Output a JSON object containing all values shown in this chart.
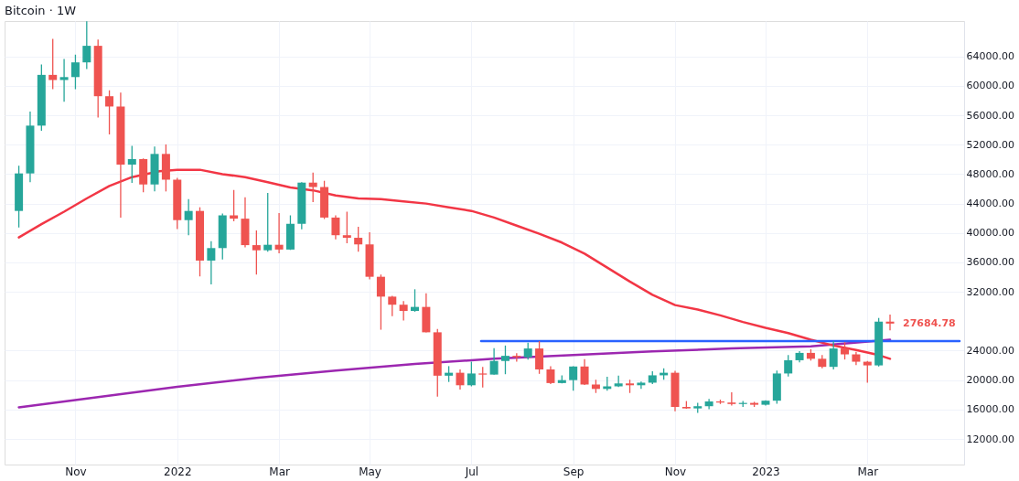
{
  "chart_data": {
    "type": "candlestick",
    "title": "Bitcoin · 1W",
    "x": [
      "2021-09-27",
      "2021-10-04",
      "2021-10-11",
      "2021-10-18",
      "2021-10-25",
      "2021-11-01",
      "2021-11-08",
      "2021-11-15",
      "2021-11-22",
      "2021-11-29",
      "2021-12-06",
      "2021-12-13",
      "2021-12-20",
      "2021-12-27",
      "2022-01-03",
      "2022-01-10",
      "2022-01-17",
      "2022-01-24",
      "2022-01-31",
      "2022-02-07",
      "2022-02-14",
      "2022-02-21",
      "2022-02-28",
      "2022-03-07",
      "2022-03-14",
      "2022-03-21",
      "2022-03-28",
      "2022-04-04",
      "2022-04-11",
      "2022-04-18",
      "2022-04-25",
      "2022-05-02",
      "2022-05-09",
      "2022-05-16",
      "2022-05-23",
      "2022-05-30",
      "2022-06-06",
      "2022-06-13",
      "2022-06-20",
      "2022-06-27",
      "2022-07-04",
      "2022-07-11",
      "2022-07-18",
      "2022-07-25",
      "2022-08-01",
      "2022-08-08",
      "2022-08-15",
      "2022-08-22",
      "2022-08-29",
      "2022-09-05",
      "2022-09-12",
      "2022-09-19",
      "2022-09-26",
      "2022-10-03",
      "2022-10-10",
      "2022-10-17",
      "2022-10-24",
      "2022-10-31",
      "2022-11-07",
      "2022-11-14",
      "2022-11-21",
      "2022-11-28",
      "2022-12-05",
      "2022-12-12",
      "2022-12-19",
      "2022-12-26",
      "2023-01-02",
      "2023-01-09",
      "2023-01-16",
      "2023-01-23",
      "2023-01-30",
      "2023-02-06",
      "2023-02-13",
      "2023-02-20",
      "2023-02-27",
      "2023-03-06",
      "2023-03-13",
      "2023-03-20"
    ],
    "ohlc": [
      [
        43000,
        49150,
        40750,
        48100
      ],
      [
        48100,
        56500,
        46900,
        54600
      ],
      [
        54600,
        62900,
        53900,
        61500
      ],
      [
        61500,
        66400,
        59550,
        60800
      ],
      [
        60800,
        63650,
        57850,
        61200
      ],
      [
        61200,
        64250,
        59550,
        63200
      ],
      [
        63200,
        68800,
        62300,
        65450
      ],
      [
        65450,
        66300,
        55700,
        58600
      ],
      [
        58600,
        59400,
        53400,
        57200
      ],
      [
        57200,
        59100,
        42100,
        49300
      ],
      [
        49300,
        51850,
        46800,
        50050
      ],
      [
        50050,
        50150,
        45550,
        46600
      ],
      [
        46600,
        51750,
        45650,
        50750
      ],
      [
        50750,
        52050,
        45650,
        47250
      ],
      [
        47250,
        47500,
        40550,
        41750
      ],
      [
        41750,
        44600,
        39700,
        43000
      ],
      [
        43000,
        43500,
        34100,
        36250
      ],
      [
        36250,
        38900,
        33000,
        37950
      ],
      [
        37950,
        42650,
        36400,
        42400
      ],
      [
        42400,
        45850,
        41600,
        41950
      ],
      [
        41950,
        44850,
        38050,
        38350
      ],
      [
        38350,
        40350,
        34350,
        37650
      ],
      [
        37650,
        45450,
        37450,
        38400
      ],
      [
        38400,
        42700,
        37250,
        37750
      ],
      [
        37750,
        42400,
        37700,
        41250
      ],
      [
        41250,
        46900,
        40500,
        46850
      ],
      [
        46850,
        48200,
        44200,
        46250
      ],
      [
        46250,
        47100,
        41900,
        42100
      ],
      [
        42100,
        42400,
        39150,
        39700
      ],
      [
        39700,
        42900,
        38600,
        39350
      ],
      [
        39350,
        40850,
        37450,
        38450
      ],
      [
        38450,
        40100,
        33700,
        34050
      ],
      [
        34050,
        34350,
        26850,
        31350
      ],
      [
        31350,
        31450,
        28700,
        30250
      ],
      [
        30250,
        30750,
        28100,
        29400
      ],
      [
        29400,
        32350,
        29300,
        29950
      ],
      [
        29950,
        31800,
        26500,
        26500
      ],
      [
        26500,
        26950,
        17750,
        20600
      ],
      [
        20600,
        21900,
        19750,
        21000
      ],
      [
        21000,
        21450,
        18700,
        19300
      ],
      [
        19300,
        22500,
        19150,
        20900
      ],
      [
        20900,
        21800,
        19000,
        20750
      ],
      [
        20750,
        24350,
        20750,
        22600
      ],
      [
        22600,
        24700,
        20800,
        23300
      ],
      [
        23300,
        23650,
        22500,
        23100
      ],
      [
        23100,
        25100,
        22800,
        24300
      ],
      [
        24300,
        25300,
        20850,
        21450
      ],
      [
        21450,
        21900,
        19450,
        19600
      ],
      [
        19600,
        20650,
        19550,
        20000
      ],
      [
        20000,
        21900,
        18550,
        21850
      ],
      [
        21850,
        22850,
        19350,
        19400
      ],
      [
        19400,
        20050,
        18250,
        18800
      ],
      [
        18800,
        20450,
        18550,
        19150
      ],
      [
        19150,
        20600,
        19050,
        19550
      ],
      [
        19550,
        20050,
        18250,
        19300
      ],
      [
        19300,
        19800,
        18800,
        19650
      ],
      [
        19650,
        21200,
        19450,
        20650
      ],
      [
        20650,
        21600,
        20050,
        21000
      ],
      [
        21000,
        21250,
        15750,
        16350
      ],
      [
        16350,
        17150,
        16100,
        16150
      ],
      [
        16150,
        16900,
        15550,
        16450
      ],
      [
        16450,
        17450,
        16050,
        17100
      ],
      [
        17100,
        17350,
        16750,
        16950
      ],
      [
        16950,
        18350,
        16550,
        16750
      ],
      [
        16750,
        17150,
        16350,
        16900
      ],
      [
        16900,
        17050,
        16350,
        16650
      ],
      [
        16650,
        17250,
        16550,
        17200
      ],
      [
        17200,
        21300,
        16800,
        20900
      ],
      [
        20900,
        23400,
        20500,
        22700
      ],
      [
        22700,
        23950,
        22400,
        23700
      ],
      [
        23700,
        24200,
        22650,
        22900
      ],
      [
        22900,
        23400,
        21600,
        21800
      ],
      [
        21800,
        25300,
        21450,
        24300
      ],
      [
        24300,
        25150,
        22800,
        23500
      ],
      [
        23500,
        23850,
        22050,
        22500
      ],
      [
        22500,
        22600,
        19650,
        22000
      ],
      [
        22000,
        28450,
        21850,
        27950
      ],
      [
        27950,
        28900,
        26750,
        27685
      ]
    ],
    "colors": [
      "#26a69a",
      "#26a69a",
      "#26a69a",
      "#ef5350",
      "#26a69a",
      "#26a69a",
      "#26a69a",
      "#ef5350",
      "#ef5350",
      "#ef5350",
      "#26a69a",
      "#ef5350",
      "#26a69a",
      "#ef5350",
      "#ef5350",
      "#26a69a",
      "#ef5350",
      "#26a69a",
      "#26a69a",
      "#ef5350",
      "#ef5350",
      "#ef5350",
      "#26a69a",
      "#ef5350",
      "#26a69a",
      "#26a69a",
      "#ef5350",
      "#ef5350",
      "#ef5350",
      "#ef5350",
      "#ef5350",
      "#ef5350",
      "#ef5350",
      "#ef5350",
      "#ef5350",
      "#26a69a",
      "#ef5350",
      "#ef5350",
      "#26a69a",
      "#ef5350",
      "#26a69a",
      "#ef5350",
      "#26a69a",
      "#26a69a",
      "#ef5350",
      "#26a69a",
      "#ef5350",
      "#ef5350",
      "#26a69a",
      "#26a69a",
      "#ef5350",
      "#ef5350",
      "#26a69a",
      "#26a69a",
      "#ef5350",
      "#26a69a",
      "#26a69a",
      "#26a69a",
      "#ef5350",
      "#ef5350",
      "#26a69a",
      "#26a69a",
      "#ef5350",
      "#ef5350",
      "#26a69a",
      "#ef5350",
      "#26a69a",
      "#26a69a",
      "#26a69a",
      "#26a69a",
      "#ef5350",
      "#ef5350",
      "#26a69a",
      "#ef5350",
      "#ef5350",
      "#ef5350",
      "#26a69a",
      "#ef5350"
    ],
    "series": [
      {
        "type": "line",
        "color": "#9c27b0",
        "x": [
          "2021-09-27",
          "2021-11-15",
          "2022-01-03",
          "2022-02-21",
          "2022-04-11",
          "2022-05-30",
          "2022-07-18",
          "2022-09-05",
          "2022-10-24",
          "2022-12-12",
          "2023-01-30",
          "2023-03-20"
        ],
        "values": [
          16300,
          17700,
          19100,
          20300,
          21300,
          22200,
          22900,
          23400,
          23900,
          24300,
          24600,
          25500
        ]
      },
      {
        "type": "line",
        "color": "#f23645",
        "x": [
          "2021-09-27",
          "2021-10-11",
          "2021-10-25",
          "2021-11-08",
          "2021-11-22",
          "2021-12-06",
          "2021-12-23",
          "2022-01-03",
          "2022-01-17",
          "2022-01-31",
          "2022-02-14",
          "2022-02-28",
          "2022-03-14",
          "2022-03-28",
          "2022-04-11",
          "2022-04-25",
          "2022-05-09",
          "2022-05-23",
          "2022-06-06",
          "2022-06-20",
          "2022-07-04",
          "2022-07-18",
          "2022-08-01",
          "2022-08-15",
          "2022-08-29",
          "2022-09-12",
          "2022-09-26",
          "2022-10-10",
          "2022-10-24",
          "2022-11-07",
          "2022-11-21",
          "2022-12-05",
          "2022-12-19",
          "2023-01-02",
          "2023-01-16",
          "2023-01-30",
          "2023-02-13",
          "2023-02-27",
          "2023-03-13",
          "2023-03-20"
        ],
        "values": [
          39400,
          41200,
          42900,
          44700,
          46400,
          47600,
          48400,
          48600,
          48600,
          48000,
          47600,
          46900,
          46200,
          45800,
          45100,
          44700,
          44600,
          44300,
          44000,
          43500,
          43000,
          42100,
          41000,
          39900,
          38700,
          37200,
          35300,
          33400,
          31600,
          30200,
          29600,
          28800,
          27900,
          27100,
          26400,
          25500,
          24700,
          24100,
          23400,
          22900
        ]
      },
      {
        "type": "line",
        "color": "#2962ff",
        "x": [
          "2022-07-10",
          "2023-05-02"
        ],
        "values": [
          25300,
          25300
        ]
      }
    ],
    "xlim": [
      "2021-09-21",
      "2023-05-02"
    ],
    "xticks": [
      {
        "value": "2021-11-01",
        "label": "Nov"
      },
      {
        "value": "2022-01-03",
        "label": "2022"
      },
      {
        "value": "2022-03-07",
        "label": "Mar"
      },
      {
        "value": "2022-05-02",
        "label": "May"
      },
      {
        "value": "2022-07-04",
        "label": "Jul"
      },
      {
        "value": "2022-09-05",
        "label": "Sep"
      },
      {
        "value": "2022-11-07",
        "label": "Nov"
      },
      {
        "value": "2023-01-02",
        "label": "2023"
      },
      {
        "value": "2023-03-06",
        "label": "Mar"
      }
    ],
    "ylim": [
      8520,
      68820
    ],
    "yticks": [
      {
        "value": 12000,
        "label": "12000.00"
      },
      {
        "value": 16000,
        "label": "16000.00"
      },
      {
        "value": 20000,
        "label": "20000.00"
      },
      {
        "value": 24000,
        "label": "24000.00"
      },
      {
        "value": 32000,
        "label": "32000.00"
      },
      {
        "value": 36000,
        "label": "36000.00"
      },
      {
        "value": 40000,
        "label": "40000.00"
      },
      {
        "value": 44000,
        "label": "44000.00"
      },
      {
        "value": 48000,
        "label": "48000.00"
      },
      {
        "value": 52000,
        "label": "52000.00"
      },
      {
        "value": 56000,
        "label": "56000.00"
      },
      {
        "value": 60000,
        "label": "60000.00"
      },
      {
        "value": 64000,
        "label": "64000.00"
      }
    ],
    "grid": true,
    "annotations": [
      {
        "text": "27684.78",
        "x": "2023-03-20",
        "y": 27684.78
      }
    ]
  }
}
